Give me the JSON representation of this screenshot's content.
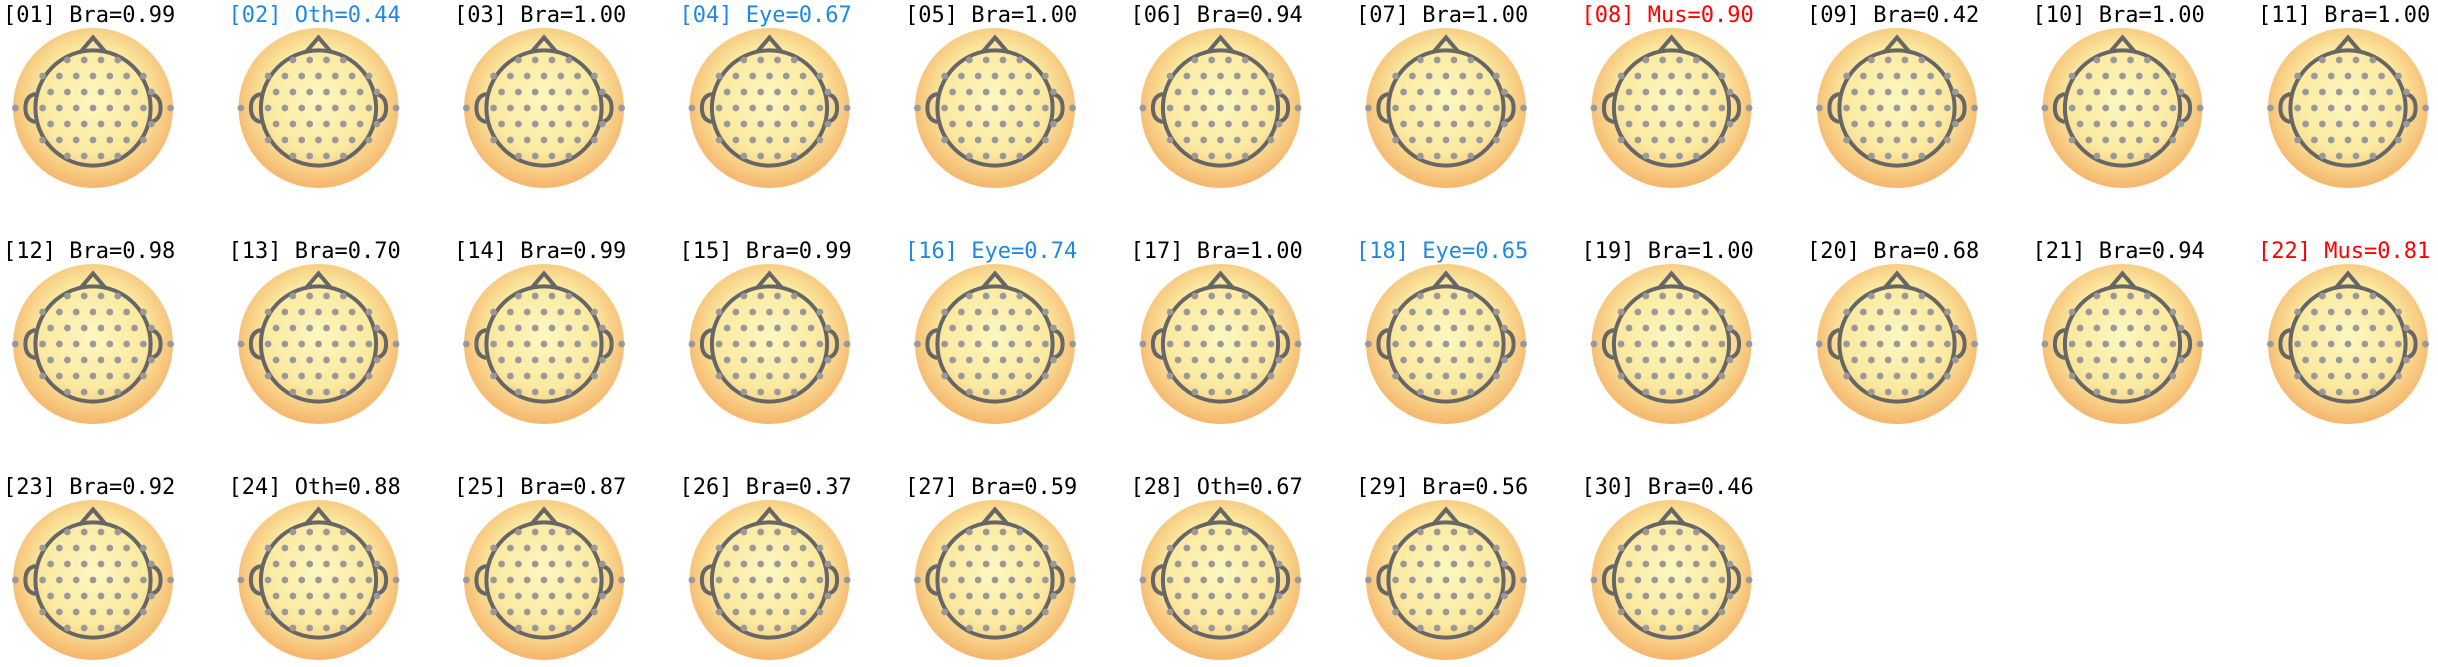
{
  "components": [
    {
      "title": "[01] Bra=0.99",
      "color": "#000000"
    },
    {
      "title": "[02] Oth=0.44",
      "color": "#1e88e5"
    },
    {
      "title": "[03] Bra=1.00",
      "color": "#000000"
    },
    {
      "title": "[04] Eye=0.67",
      "color": "#1e88e5"
    },
    {
      "title": "[05] Bra=1.00",
      "color": "#000000"
    },
    {
      "title": "[06] Bra=0.94",
      "color": "#000000"
    },
    {
      "title": "[07] Bra=1.00",
      "color": "#000000"
    },
    {
      "title": "[08] Mus=0.90",
      "color": "#ff0000"
    },
    {
      "title": "[09] Bra=0.42",
      "color": "#000000"
    },
    {
      "title": "[10] Bra=1.00",
      "color": "#000000"
    },
    {
      "title": "[11] Bra=1.00",
      "color": "#000000"
    },
    {
      "title": "[12] Bra=0.98",
      "color": "#000000"
    },
    {
      "title": "[13] Bra=0.70",
      "color": "#000000"
    },
    {
      "title": "[14] Bra=0.99",
      "color": "#000000"
    },
    {
      "title": "[15] Bra=0.99",
      "color": "#000000"
    },
    {
      "title": "[16] Eye=0.74",
      "color": "#1e88e5"
    },
    {
      "title": "[17] Bra=1.00",
      "color": "#000000"
    },
    {
      "title": "[18] Eye=0.65",
      "color": "#1e88e5"
    },
    {
      "title": "[19] Bra=1.00",
      "color": "#000000"
    },
    {
      "title": "[20] Bra=0.68",
      "color": "#000000"
    },
    {
      "title": "[21] Bra=0.94",
      "color": "#000000"
    },
    {
      "title": "[22] Mus=0.81",
      "color": "#ff0000"
    },
    {
      "title": "[23] Bra=0.92",
      "color": "#000000"
    },
    {
      "title": "[24] Oth=0.88",
      "color": "#000000"
    },
    {
      "title": "[25] Bra=0.87",
      "color": "#000000"
    },
    {
      "title": "[26] Bra=0.37",
      "color": "#000000"
    },
    {
      "title": "[27] Bra=0.59",
      "color": "#000000"
    },
    {
      "title": "[28] Oth=0.67",
      "color": "#000000"
    },
    {
      "title": "[29] Bra=0.56",
      "color": "#000000"
    },
    {
      "title": "[30] Bra=0.46",
      "color": "#000000"
    }
  ]
}
